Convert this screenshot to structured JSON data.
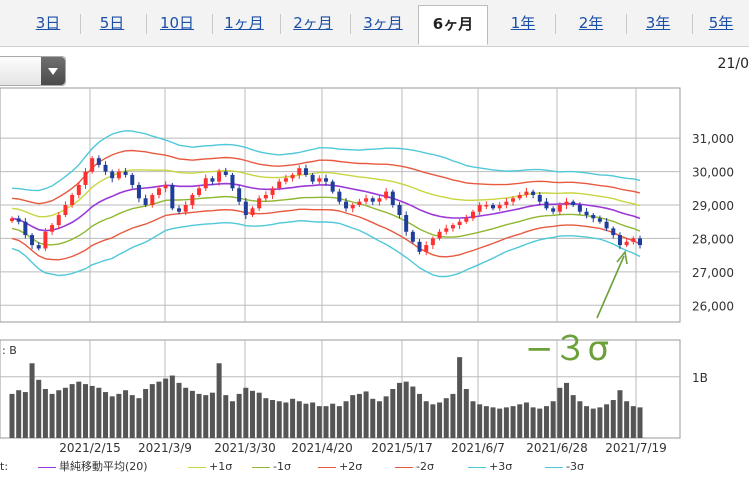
{
  "tabs": [
    {
      "label": "3日",
      "active": false
    },
    {
      "label": "5日",
      "active": false
    },
    {
      "label": "10日",
      "active": false
    },
    {
      "label": "1ヶ月",
      "active": false
    },
    {
      "label": "2ヶ月",
      "active": false
    },
    {
      "label": "3ヶ月",
      "active": false
    },
    {
      "label": "6ヶ月",
      "active": true
    },
    {
      "label": "1年",
      "active": false
    },
    {
      "label": "2年",
      "active": false
    },
    {
      "label": "3年",
      "active": false
    },
    {
      "label": "5年",
      "active": false
    }
  ],
  "corner_date": "21/0",
  "volume_prefix": ": B",
  "legend_prefix": "t:",
  "annotation": "−３σ",
  "colors": {
    "up": "#ff3030",
    "down": "#1f3d9a",
    "sma": "#9a38d8",
    "plus1": "#c8d640",
    "minus1": "#8fb830",
    "plus2": "#e85a40",
    "minus2": "#e85a40",
    "plus3": "#4fc8d8",
    "minus3": "#4fc8d8",
    "volume": "#555555",
    "annotation": "#6ba03a"
  },
  "legend": [
    {
      "label": "単純移動平均(20)",
      "color_key": "sma"
    },
    {
      "label": "+1σ",
      "color_key": "plus1"
    },
    {
      "label": "-1σ",
      "color_key": "minus1"
    },
    {
      "label": "+2σ",
      "color_key": "plus2"
    },
    {
      "label": "-2σ",
      "color_key": "minus2"
    },
    {
      "label": "+3σ",
      "color_key": "plus3"
    },
    {
      "label": "-3σ",
      "color_key": "minus3"
    }
  ],
  "chart_data": {
    "type": "line",
    "ylim": [
      25500,
      32500
    ],
    "y_ticks": [
      26000,
      27000,
      28000,
      29000,
      30000,
      31000
    ],
    "y_tick_labels": [
      "26,000",
      "27,000",
      "28,000",
      "29,000",
      "30,000",
      "31,000"
    ],
    "x_tick_labels": [
      "2021/2/15",
      "2021/3/9",
      "2021/3/30",
      "2021/4/20",
      "2021/5/17",
      "2021/6/7",
      "2021/6/28",
      "2021/7/19"
    ],
    "volume_tick_label": "1B",
    "volume_ylim": [
      0,
      1.6
    ],
    "close": [
      28600,
      28500,
      28100,
      27800,
      27700,
      28200,
      28400,
      28700,
      29000,
      29300,
      29600,
      30000,
      30400,
      30200,
      30000,
      29800,
      30000,
      29900,
      29600,
      29200,
      29000,
      29300,
      29500,
      29600,
      28900,
      28800,
      29000,
      29300,
      29500,
      29800,
      29700,
      30000,
      29900,
      29500,
      29100,
      28700,
      28900,
      29200,
      29300,
      29500,
      29700,
      29800,
      29900,
      30100,
      29900,
      29700,
      29800,
      29700,
      29400,
      29100,
      28900,
      29000,
      29100,
      29200,
      29100,
      29200,
      29400,
      29000,
      28700,
      28200,
      27900,
      27600,
      27800,
      28000,
      28200,
      28300,
      28400,
      28500,
      28600,
      28800,
      29000,
      29000,
      28900,
      29000,
      29100,
      29200,
      29300,
      29400,
      29300,
      29100,
      28900,
      28800,
      29000,
      29100,
      29000,
      28800,
      28700,
      28600,
      28500,
      28300,
      28100,
      27800,
      27900,
      28000,
      27800
    ],
    "sma": [
      28600,
      28560,
      28470,
      28360,
      28260,
      28230,
      28250,
      28300,
      28380,
      28480,
      28610,
      28770,
      28950,
      29080,
      29180,
      29260,
      29350,
      29420,
      29470,
      29490,
      29510,
      29530,
      29560,
      29590,
      29580,
      29560,
      29560,
      29560,
      29580,
      29600,
      29610,
      29630,
      29640,
      29630,
      29600,
      29550,
      29510,
      29480,
      29470,
      29470,
      29480,
      29500,
      29520,
      29550,
      29570,
      29580,
      29600,
      29600,
      29590,
      29560,
      29520,
      29480,
      29440,
      29400,
      29350,
      29300,
      29260,
      29200,
      29130,
      29050,
      28960,
      28860,
      28780,
      28710,
      28660,
      28630,
      28610,
      28610,
      28620,
      28640,
      28670,
      28700,
      28730,
      28770,
      28810,
      28850,
      28890,
      28940,
      28980,
      29010,
      29020,
      29020,
      29030,
      29040,
      29040,
      29020,
      29000,
      28970,
      28940,
      28900,
      28850,
      28780,
      28720,
      28670,
      28600
    ],
    "sigma": [
      300,
      310,
      330,
      360,
      390,
      420,
      440,
      470,
      490,
      510,
      530,
      560,
      580,
      600,
      610,
      620,
      610,
      600,
      580,
      560,
      540,
      510,
      480,
      450,
      430,
      410,
      400,
      390,
      390,
      390,
      390,
      390,
      390,
      390,
      390,
      390,
      380,
      370,
      360,
      350,
      340,
      340,
      340,
      340,
      350,
      360,
      370,
      370,
      370,
      370,
      380,
      390,
      400,
      420,
      440,
      460,
      480,
      500,
      520,
      540,
      560,
      580,
      590,
      600,
      600,
      590,
      570,
      550,
      520,
      500,
      480,
      460,
      440,
      420,
      400,
      390,
      380,
      370,
      360,
      350,
      340,
      330,
      320,
      320,
      320,
      320,
      320,
      320,
      320,
      330,
      340,
      350,
      360,
      370,
      380
    ],
    "volume": [
      0.72,
      0.78,
      0.75,
      1.22,
      0.95,
      0.8,
      0.72,
      0.78,
      0.82,
      0.88,
      0.92,
      0.88,
      0.85,
      0.82,
      0.75,
      0.68,
      0.72,
      0.78,
      0.7,
      0.65,
      0.8,
      0.88,
      0.92,
      0.97,
      1.02,
      0.9,
      0.82,
      0.77,
      0.72,
      0.7,
      0.74,
      1.22,
      0.7,
      0.6,
      0.72,
      0.82,
      0.77,
      0.74,
      0.65,
      0.62,
      0.6,
      0.58,
      0.64,
      0.6,
      0.56,
      0.58,
      0.52,
      0.52,
      0.56,
      0.52,
      0.6,
      0.7,
      0.72,
      0.76,
      0.64,
      0.6,
      0.68,
      0.8,
      0.9,
      0.92,
      0.84,
      0.72,
      0.6,
      0.55,
      0.58,
      0.65,
      0.72,
      1.32,
      0.8,
      0.6,
      0.55,
      0.52,
      0.5,
      0.48,
      0.5,
      0.52,
      0.55,
      0.58,
      0.5,
      0.48,
      0.52,
      0.6,
      0.82,
      0.9,
      0.7,
      0.6,
      0.52,
      0.48,
      0.5,
      0.55,
      0.62,
      0.78,
      0.6,
      0.52,
      0.5
    ]
  }
}
